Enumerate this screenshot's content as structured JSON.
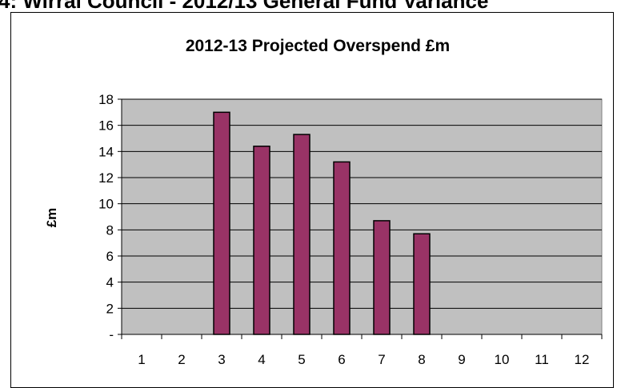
{
  "header": {
    "text": "4: Wirral Council - 2012/13 General Fund Variance"
  },
  "chart_data": {
    "type": "bar",
    "title": "2012-13 Projected Overspend £m",
    "xlabel": "",
    "ylabel": "£m",
    "categories": [
      "1",
      "2",
      "3",
      "4",
      "5",
      "6",
      "7",
      "8",
      "9",
      "10",
      "11",
      "12"
    ],
    "values": [
      null,
      null,
      17.0,
      14.4,
      15.3,
      13.2,
      8.7,
      7.7,
      null,
      null,
      null,
      null
    ],
    "ylim": [
      0,
      18
    ],
    "y_ticks": [
      0,
      2,
      4,
      6,
      8,
      10,
      12,
      14,
      16,
      18
    ],
    "y_tick_labels": [
      "-",
      "2",
      "4",
      "6",
      "8",
      "10",
      "12",
      "14",
      "16",
      "18"
    ],
    "grid": true,
    "colors": {
      "bar_fill": "#993366",
      "bar_stroke": "#000000",
      "plot_background": "#c0c0c0",
      "gridline": "#000000"
    }
  }
}
